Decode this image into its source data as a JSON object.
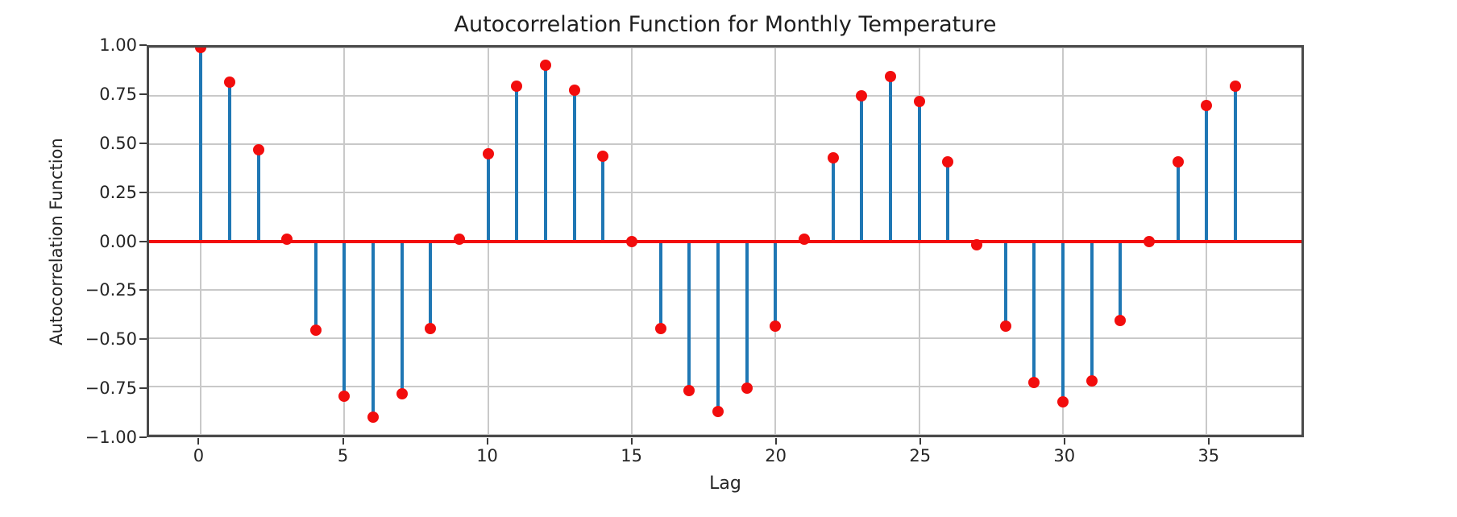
{
  "figure": {
    "title": "Autocorrelation Function for Monthly Temperature",
    "xlabel": "Lag",
    "ylabel": "Autocorrelation Function"
  },
  "chart_data": {
    "type": "stem",
    "title": "Autocorrelation Function for Monthly Temperature",
    "xlabel": "Lag",
    "ylabel": "Autocorrelation Function",
    "x": [
      0,
      1,
      2,
      3,
      4,
      5,
      6,
      7,
      8,
      9,
      10,
      11,
      12,
      13,
      14,
      15,
      16,
      17,
      18,
      19,
      20,
      21,
      22,
      23,
      24,
      25,
      26,
      27,
      28,
      29,
      30,
      31,
      32,
      33,
      34,
      35,
      36
    ],
    "values": [
      1.0,
      0.82,
      0.47,
      0.01,
      -0.46,
      -0.8,
      -0.91,
      -0.79,
      -0.45,
      0.01,
      0.45,
      0.8,
      0.91,
      0.78,
      0.44,
      0.0,
      -0.45,
      -0.77,
      -0.88,
      -0.76,
      -0.44,
      0.01,
      0.43,
      0.75,
      0.85,
      0.72,
      0.41,
      -0.02,
      -0.44,
      -0.73,
      -0.83,
      -0.72,
      -0.41,
      0.0,
      0.41,
      0.7,
      0.8
    ],
    "baseline_value": 0,
    "xlim": [
      -1.8,
      38.3
    ],
    "ylim": [
      -1.0,
      1.0
    ],
    "x_ticks": [
      {
        "value": 0,
        "label": "0"
      },
      {
        "value": 5,
        "label": "5"
      },
      {
        "value": 10,
        "label": "10"
      },
      {
        "value": 15,
        "label": "15"
      },
      {
        "value": 20,
        "label": "20"
      },
      {
        "value": 25,
        "label": "25"
      },
      {
        "value": 30,
        "label": "30"
      },
      {
        "value": 35,
        "label": "35"
      }
    ],
    "y_ticks": [
      {
        "value": 1.0,
        "label": "1.00"
      },
      {
        "value": 0.75,
        "label": "0.75"
      },
      {
        "value": 0.5,
        "label": "0.50"
      },
      {
        "value": 0.25,
        "label": "0.25"
      },
      {
        "value": 0.0,
        "label": "0.00"
      },
      {
        "value": -0.25,
        "label": "−0.25"
      },
      {
        "value": -0.5,
        "label": "−0.50"
      },
      {
        "value": -0.75,
        "label": "−0.75"
      },
      {
        "value": -1.0,
        "label": "−1.00"
      }
    ],
    "grid": true,
    "legend": null,
    "colors": {
      "stem": "#1f77b4",
      "marker": "#f20d0d",
      "baseline": "#f20d0d",
      "grid": "#c9c9c9",
      "spine": "#4a4a4a",
      "text": "#262626"
    }
  }
}
